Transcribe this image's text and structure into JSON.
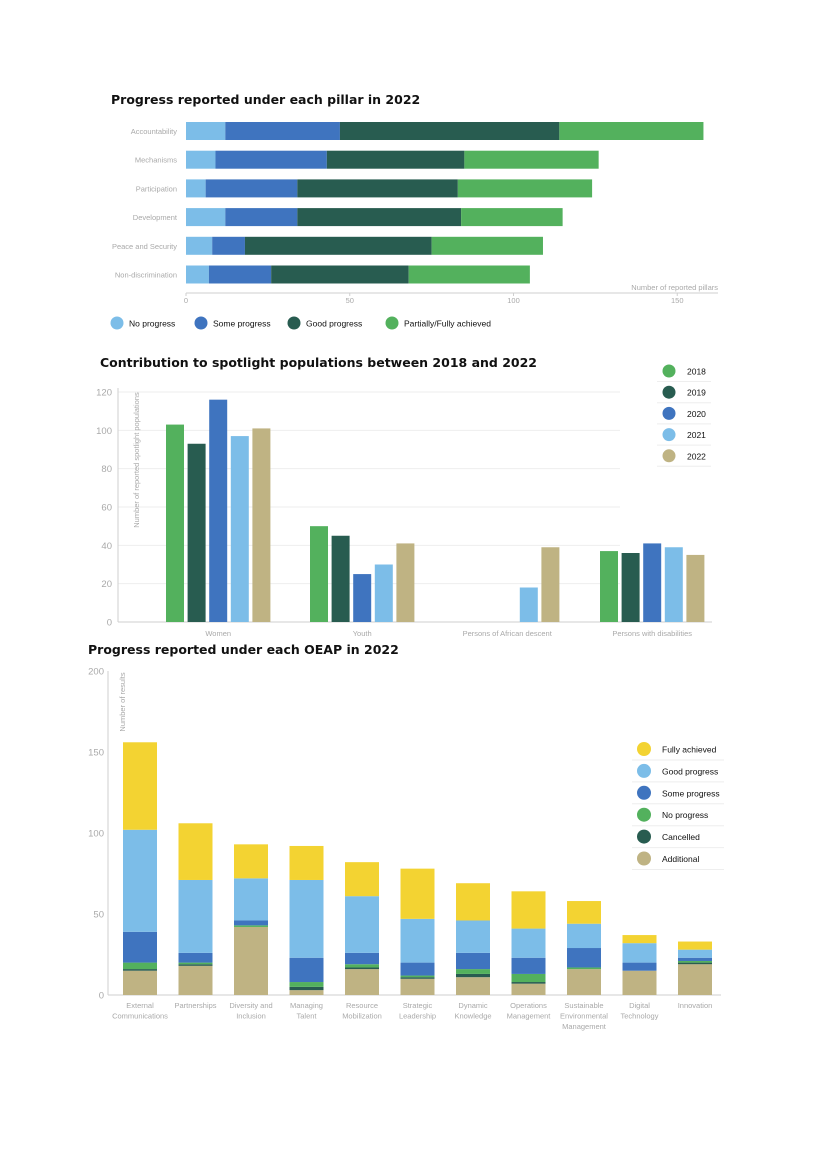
{
  "colors": {
    "light_blue": "#7cbde8",
    "blue": "#3f74bf",
    "dark_green": "#285c50",
    "green": "#53b15d",
    "yellow": "#f3d332",
    "tan": "#bfb383"
  },
  "chart_data": [
    {
      "type": "bar",
      "orientation": "horizontal",
      "stacked": true,
      "title": "Progress reported under each pillar in 2022",
      "xlabel": "Number of reported pillars",
      "ylabel": "",
      "xlim": [
        0,
        160
      ],
      "xticks": [
        0,
        50,
        100,
        150
      ],
      "categories": [
        "Accountability",
        "Mechanisms",
        "Participation",
        "Development",
        "Peace and Security",
        "Non-discrimination"
      ],
      "series": [
        {
          "name": "No progress",
          "color": "#7cbde8",
          "values": [
            12,
            9,
            6,
            12,
            8,
            7
          ]
        },
        {
          "name": "Some progress",
          "color": "#3f74bf",
          "values": [
            35,
            34,
            28,
            22,
            10,
            19
          ]
        },
        {
          "name": "Good progress",
          "color": "#285c50",
          "values": [
            67,
            42,
            49,
            50,
            57,
            42
          ]
        },
        {
          "name": "Partially/Fully achieved",
          "color": "#53b15d",
          "values": [
            44,
            41,
            41,
            31,
            34,
            37
          ]
        }
      ],
      "legend": "bottom"
    },
    {
      "type": "bar",
      "title": "Contribution to spotlight populations between 2018 and 2022",
      "xlabel": "",
      "ylabel": "Number of reported spotlight populations",
      "ylim": [
        0,
        120
      ],
      "yticks": [
        0,
        20,
        40,
        60,
        80,
        100,
        120
      ],
      "categories": [
        "Women",
        "Youth",
        "Persons of African descent",
        "Persons with disabilities"
      ],
      "series": [
        {
          "name": "2018",
          "color": "#53b15d",
          "values": [
            103,
            50,
            null,
            37
          ]
        },
        {
          "name": "2019",
          "color": "#285c50",
          "values": [
            93,
            45,
            null,
            36
          ]
        },
        {
          "name": "2020",
          "color": "#3f74bf",
          "values": [
            116,
            25,
            null,
            41
          ]
        },
        {
          "name": "2021",
          "color": "#7cbde8",
          "values": [
            97,
            30,
            18,
            39
          ]
        },
        {
          "name": "2022",
          "color": "#bfb383",
          "values": [
            101,
            41,
            39,
            35
          ]
        }
      ],
      "legend": "top-right"
    },
    {
      "type": "bar",
      "stacked": true,
      "title": "Progress reported under each OEAP in 2022",
      "xlabel": "",
      "ylabel": "Number of results",
      "ylim": [
        0,
        200
      ],
      "yticks": [
        0,
        50,
        100,
        150,
        200
      ],
      "categories": [
        [
          "External",
          "Communications"
        ],
        [
          "Partnerships"
        ],
        [
          "Diversity and",
          "Inclusion"
        ],
        [
          "Managing",
          "Talent"
        ],
        [
          "Resource",
          "Mobilization"
        ],
        [
          "Strategic",
          "Leadership"
        ],
        [
          "Dynamic",
          "Knowledge"
        ],
        [
          "Operations",
          "Management"
        ],
        [
          "Sustainable",
          "Environmental",
          "Management"
        ],
        [
          "Digital",
          "Technology"
        ],
        [
          "Innovation"
        ]
      ],
      "series": [
        {
          "name": "Additional",
          "color": "#bfb383",
          "values": [
            15,
            18,
            42,
            3,
            16,
            10,
            11,
            7,
            16,
            15,
            19
          ]
        },
        {
          "name": "Cancelled",
          "color": "#285c50",
          "values": [
            1,
            1,
            0,
            2,
            1,
            1,
            2,
            1,
            0,
            0,
            1
          ]
        },
        {
          "name": "No progress",
          "color": "#53b15d",
          "values": [
            4,
            1,
            1,
            3,
            2,
            1,
            3,
            5,
            1,
            0,
            1
          ]
        },
        {
          "name": "Some progress",
          "color": "#3f74bf",
          "values": [
            19,
            6,
            3,
            15,
            7,
            8,
            10,
            10,
            12,
            5,
            2
          ]
        },
        {
          "name": "Good progress",
          "color": "#7cbde8",
          "values": [
            63,
            45,
            26,
            48,
            35,
            27,
            20,
            18,
            15,
            12,
            5
          ]
        },
        {
          "name": "Fully achieved",
          "color": "#f3d332",
          "values": [
            54,
            35,
            21,
            21,
            21,
            31,
            23,
            23,
            14,
            5,
            5
          ]
        }
      ],
      "legend_order": [
        "Fully achieved",
        "Good progress",
        "Some progress",
        "No progress",
        "Cancelled",
        "Additional"
      ],
      "legend": "top-right"
    }
  ]
}
